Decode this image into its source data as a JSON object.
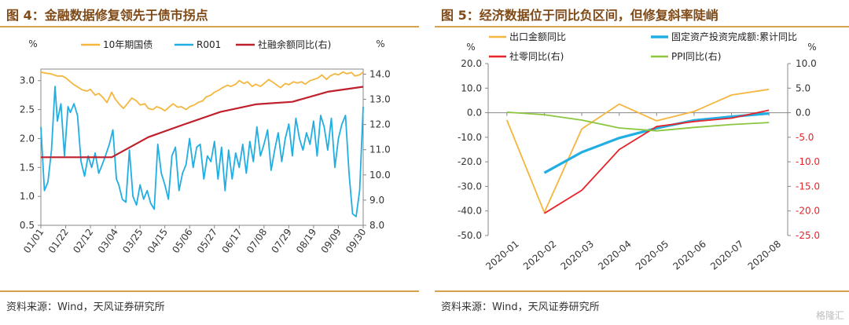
{
  "figures": [
    {
      "title": "图 4：金融数据修复领先于债市拐点",
      "source": "资料来源：Wind，天风证券研究所"
    },
    {
      "title": "图 5：经济数据位于同比负区间，但修复斜率陡峭",
      "source": "资料来源：Wind，天风证券研究所"
    }
  ],
  "watermark": "格隆汇",
  "chart_data": [
    {
      "type": "line",
      "left_axis_unit": "%",
      "right_axis_unit": "%",
      "x_ticks": [
        "01/01",
        "01/22",
        "02/12",
        "03/04",
        "03/25",
        "04/15",
        "05/06",
        "05/27",
        "06/17",
        "07/08",
        "07/29",
        "08/19",
        "09/09",
        "09/30"
      ],
      "y_left_ticks": [
        "0.5",
        "1.0",
        "1.5",
        "2.0",
        "2.5",
        "3.0"
      ],
      "y_right_ticks": [
        "8.0",
        "9.0",
        "10.0",
        "11.0",
        "12.0",
        "13.0",
        "14.0"
      ],
      "ylim_left": [
        0.5,
        3.2
      ],
      "ylim_right": [
        8.0,
        14.2
      ],
      "legend_position": "top",
      "series": [
        {
          "name": "10年期国债",
          "axis": "left",
          "color": "#f4b63f",
          "x_days": [
            0,
            4,
            8,
            11,
            14,
            18,
            21,
            25,
            28,
            32,
            35,
            39,
            42,
            46,
            49,
            53,
            56,
            60,
            63,
            67,
            70,
            74,
            77,
            81,
            84,
            88,
            91,
            95,
            98,
            102,
            105,
            109,
            112,
            116,
            119,
            123,
            126,
            130,
            133,
            137,
            140,
            144,
            147,
            151,
            154,
            158,
            161,
            165,
            168,
            172,
            175,
            179,
            182,
            186,
            189,
            193,
            196,
            200,
            203,
            207,
            210,
            214,
            217,
            221,
            224,
            228,
            231,
            235,
            238,
            242,
            245,
            249,
            252,
            256,
            259,
            263,
            266,
            270,
            273
          ],
          "values": [
            3.15,
            3.13,
            3.12,
            3.1,
            3.08,
            3.08,
            3.05,
            2.98,
            2.93,
            2.88,
            2.84,
            2.82,
            2.85,
            2.75,
            2.78,
            2.7,
            2.62,
            2.8,
            2.68,
            2.58,
            2.52,
            2.62,
            2.7,
            2.65,
            2.58,
            2.6,
            2.52,
            2.5,
            2.55,
            2.52,
            2.48,
            2.55,
            2.6,
            2.54,
            2.55,
            2.5,
            2.55,
            2.58,
            2.62,
            2.65,
            2.72,
            2.75,
            2.8,
            2.84,
            2.88,
            2.92,
            2.9,
            2.94,
            3.0,
            2.95,
            2.98,
            2.9,
            2.94,
            2.9,
            2.95,
            3.02,
            2.98,
            2.92,
            2.88,
            2.95,
            2.93,
            2.98,
            2.96,
            2.98,
            2.94,
            3.0,
            3.02,
            3.05,
            3.1,
            3.02,
            3.08,
            3.12,
            3.1,
            3.15,
            3.12,
            3.14,
            3.08,
            3.1,
            3.15
          ]
        },
        {
          "name": "R001",
          "axis": "left",
          "color": "#21aee3",
          "x_days": [
            0,
            3,
            6,
            9,
            12,
            14,
            17,
            20,
            23,
            25,
            28,
            31,
            34,
            37,
            40,
            43,
            46,
            49,
            52,
            55,
            58,
            61,
            64,
            66,
            69,
            72,
            75,
            78,
            81,
            84,
            87,
            90,
            93,
            96,
            99,
            102,
            105,
            108,
            111,
            114,
            117,
            120,
            123,
            126,
            129,
            132,
            135,
            138,
            141,
            144,
            147,
            150,
            153,
            156,
            159,
            162,
            165,
            168,
            171,
            174,
            177,
            180,
            183,
            186,
            189,
            192,
            195,
            198,
            201,
            204,
            207,
            210,
            213,
            216,
            219,
            222,
            225,
            228,
            231,
            234,
            237,
            240,
            243,
            246,
            249,
            252,
            255,
            258,
            261,
            264,
            267,
            270,
            273
          ],
          "values": [
            2.2,
            1.1,
            1.25,
            1.8,
            2.9,
            2.3,
            2.6,
            1.7,
            2.55,
            2.45,
            2.6,
            2.4,
            1.6,
            1.35,
            1.7,
            1.5,
            1.75,
            1.4,
            1.55,
            1.72,
            1.9,
            2.15,
            1.3,
            1.2,
            0.95,
            0.9,
            1.8,
            1.0,
            0.85,
            1.2,
            0.95,
            1.1,
            0.88,
            0.78,
            1.9,
            1.4,
            1.2,
            0.95,
            1.7,
            1.85,
            1.1,
            1.4,
            1.55,
            2.0,
            1.5,
            1.85,
            1.9,
            1.3,
            1.7,
            1.6,
            1.95,
            1.3,
            1.85,
            1.1,
            1.8,
            1.3,
            1.75,
            1.5,
            1.9,
            1.4,
            1.95,
            1.6,
            2.2,
            1.7,
            1.9,
            2.15,
            1.45,
            1.8,
            2.1,
            1.6,
            2.0,
            2.25,
            1.7,
            2.35,
            2.0,
            1.8,
            2.1,
            1.9,
            2.3,
            1.7,
            2.4,
            2.2,
            1.8,
            2.35,
            1.5,
            2.0,
            2.25,
            2.4,
            1.4,
            0.7,
            0.65,
            1.1,
            2.55
          ]
        },
        {
          "name": "社融余额同比(右)",
          "axis": "right",
          "color": "#c0202b",
          "x_days": [
            0,
            31,
            60,
            91,
            121,
            152,
            182,
            213,
            243,
            273
          ],
          "values": [
            10.7,
            10.7,
            10.7,
            11.5,
            12.0,
            12.5,
            12.8,
            12.9,
            13.3,
            13.5
          ]
        }
      ]
    },
    {
      "type": "line",
      "left_axis_unit": "%",
      "right_axis_unit": "%",
      "categories": [
        "2020-01",
        "2020-02",
        "2020-03",
        "2020-04",
        "2020-05",
        "2020-06",
        "2020-07",
        "2020-08"
      ],
      "y_left_ticks": [
        "-50.0",
        "-40.0",
        "-30.0",
        "-20.0",
        "-10.0",
        "0.0",
        "10.0",
        "20.0"
      ],
      "y_right_ticks": [
        "-25.0",
        "-20.0",
        "-15.0",
        "-10.0",
        "-5.0",
        "0.0",
        "5.0",
        "10.0"
      ],
      "ylim_left": [
        -50,
        20
      ],
      "ylim_right": [
        -25,
        10
      ],
      "legend_position": "top",
      "series": [
        {
          "name": "出口金额同比",
          "axis": "left",
          "color": "#f4b63f",
          "values": [
            -3.0,
            -40.6,
            -6.6,
            3.5,
            -3.3,
            0.5,
            7.2,
            9.5
          ]
        },
        {
          "name": "固定资产投资完成额:累计同比",
          "axis": "left",
          "color": "#21aee3",
          "values": [
            null,
            -24.5,
            -16.1,
            -10.3,
            -6.3,
            -3.1,
            -1.6,
            -0.3
          ]
        },
        {
          "name": "社零同比(右)",
          "axis": "right",
          "color": "#e8232a",
          "values": [
            null,
            -20.5,
            -15.8,
            -7.5,
            -2.8,
            -1.8,
            -1.1,
            0.5
          ]
        },
        {
          "name": "PPI同比(右)",
          "axis": "right",
          "color": "#8cc63f",
          "values": [
            0.1,
            -0.4,
            -1.5,
            -3.1,
            -3.7,
            -3.0,
            -2.4,
            -2.0
          ]
        }
      ]
    }
  ]
}
